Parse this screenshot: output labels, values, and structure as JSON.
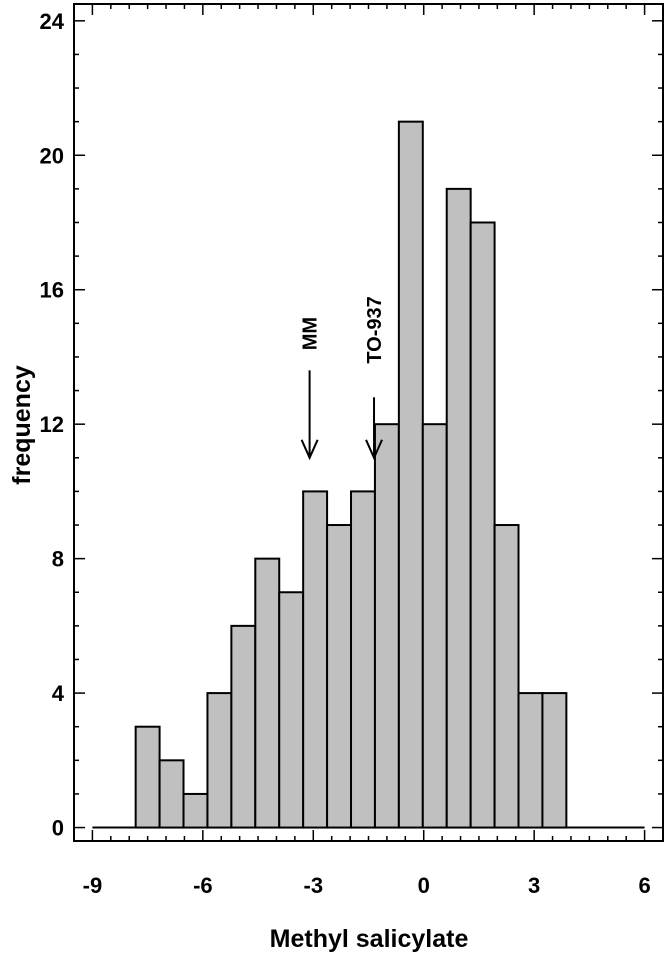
{
  "chart_data": {
    "type": "bar",
    "xlabel": "Methyl salicylate",
    "ylabel": "frequency",
    "xlim": [
      -9.5,
      6.5
    ],
    "ylim": [
      -0.4,
      24.5
    ],
    "x_ticks": [
      -9,
      -6,
      -3,
      0,
      3,
      6
    ],
    "y_ticks": [
      0,
      4,
      8,
      12,
      16,
      20,
      24
    ],
    "x_tick_labels": [
      "-9",
      "-6",
      "-3",
      "0",
      "3",
      "6"
    ],
    "y_tick_labels": [
      "0",
      "4",
      "8",
      "12",
      "16",
      "20",
      "24"
    ],
    "bin_width": 0.65,
    "bin_centers": [
      -7.5,
      -6.85,
      -6.2,
      -5.55,
      -4.9,
      -4.25,
      -3.6,
      -2.95,
      -2.3,
      -1.65,
      -1.0,
      -0.35,
      0.3,
      0.95,
      1.6,
      2.25,
      2.9,
      3.55
    ],
    "values": [
      3,
      2,
      1,
      4,
      6,
      8,
      7,
      10,
      9,
      10,
      12,
      21,
      12,
      19,
      18,
      9,
      4,
      4
    ],
    "baseline_range": [
      -9,
      6
    ],
    "bar_color": "#c0c0c0",
    "grid": false,
    "annotations": [
      {
        "text": "MM",
        "x": -3.1,
        "arrow_top": 13.6,
        "arrow_tip": 11.0,
        "label_y": 14.2
      },
      {
        "text": "TO-937",
        "x": -1.35,
        "arrow_top": 12.8,
        "arrow_tip": 11.0,
        "label_y": 13.8
      }
    ]
  }
}
